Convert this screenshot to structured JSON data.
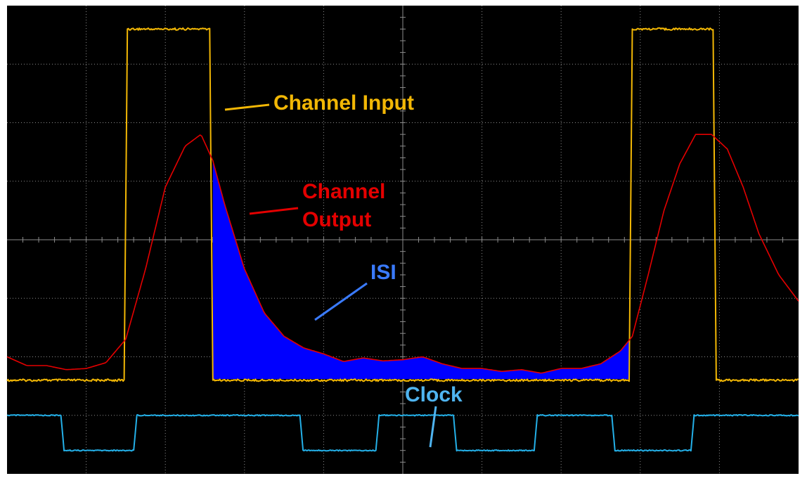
{
  "colors": {
    "background": "#000000",
    "grid": "#8c8c8c",
    "input": "#f2b705",
    "output": "#e40000",
    "isi": "#0000ff",
    "isi_label": "#3a7bff",
    "clock": "#24b0e8",
    "clock_label": "#4fb4f0"
  },
  "annotations": {
    "channel_input": "Channel Input",
    "channel_output_line1": "Channel",
    "channel_output_line2": "Output",
    "isi": "ISI",
    "clock": "Clock"
  },
  "chart_data": {
    "type": "line",
    "title": "",
    "xlabel": "",
    "ylabel": "",
    "xlim": [
      0,
      10
    ],
    "ylim": [
      0,
      8
    ],
    "grid": true,
    "grid_divisions": {
      "x": 10,
      "y": 8
    },
    "series": [
      {
        "name": "Channel Input",
        "x": [
          0,
          1.48,
          1.52,
          2.56,
          2.6,
          7.86,
          7.9,
          8.92,
          8.96,
          10
        ],
        "y": [
          1.6,
          1.6,
          7.6,
          7.6,
          1.6,
          1.6,
          7.6,
          7.6,
          1.6,
          1.6
        ]
      },
      {
        "name": "Channel Output",
        "x": [
          0,
          0.25,
          0.5,
          0.75,
          1.0,
          1.25,
          1.5,
          1.75,
          2.0,
          2.25,
          2.45,
          2.6,
          2.75,
          3.0,
          3.25,
          3.5,
          3.75,
          4.0,
          4.25,
          4.5,
          4.75,
          5.0,
          5.25,
          5.5,
          5.75,
          6.0,
          6.25,
          6.5,
          6.75,
          7.0,
          7.25,
          7.5,
          7.75,
          7.9,
          8.1,
          8.3,
          8.5,
          8.7,
          8.9,
          9.1,
          9.3,
          9.5,
          9.75,
          10.0
        ],
        "y": [
          2.0,
          1.85,
          1.85,
          1.78,
          1.8,
          1.9,
          2.3,
          3.5,
          4.9,
          5.6,
          5.8,
          5.35,
          4.6,
          3.5,
          2.75,
          2.35,
          2.15,
          2.05,
          1.92,
          1.98,
          1.93,
          1.95,
          2.0,
          1.88,
          1.8,
          1.8,
          1.75,
          1.78,
          1.72,
          1.8,
          1.8,
          1.88,
          2.1,
          2.35,
          3.4,
          4.5,
          5.3,
          5.8,
          5.8,
          5.55,
          4.9,
          4.1,
          3.4,
          2.95
        ]
      },
      {
        "name": "Clock",
        "x": [
          0,
          0.68,
          0.72,
          1.6,
          1.64,
          3.7,
          3.74,
          4.66,
          4.7,
          5.64,
          5.68,
          6.66,
          6.7,
          7.64,
          7.68,
          8.64,
          8.68,
          10
        ],
        "y": [
          1.0,
          1.0,
          0.4,
          0.4,
          1.0,
          1.0,
          0.4,
          0.4,
          1.0,
          1.0,
          0.4,
          0.4,
          1.0,
          1.0,
          0.4,
          0.4,
          1.0,
          1.0
        ]
      }
    ],
    "shaded_region": {
      "name": "ISI",
      "x_start": 2.6,
      "x_end": 7.86,
      "between": [
        "Channel Output",
        "Channel Input"
      ]
    }
  }
}
